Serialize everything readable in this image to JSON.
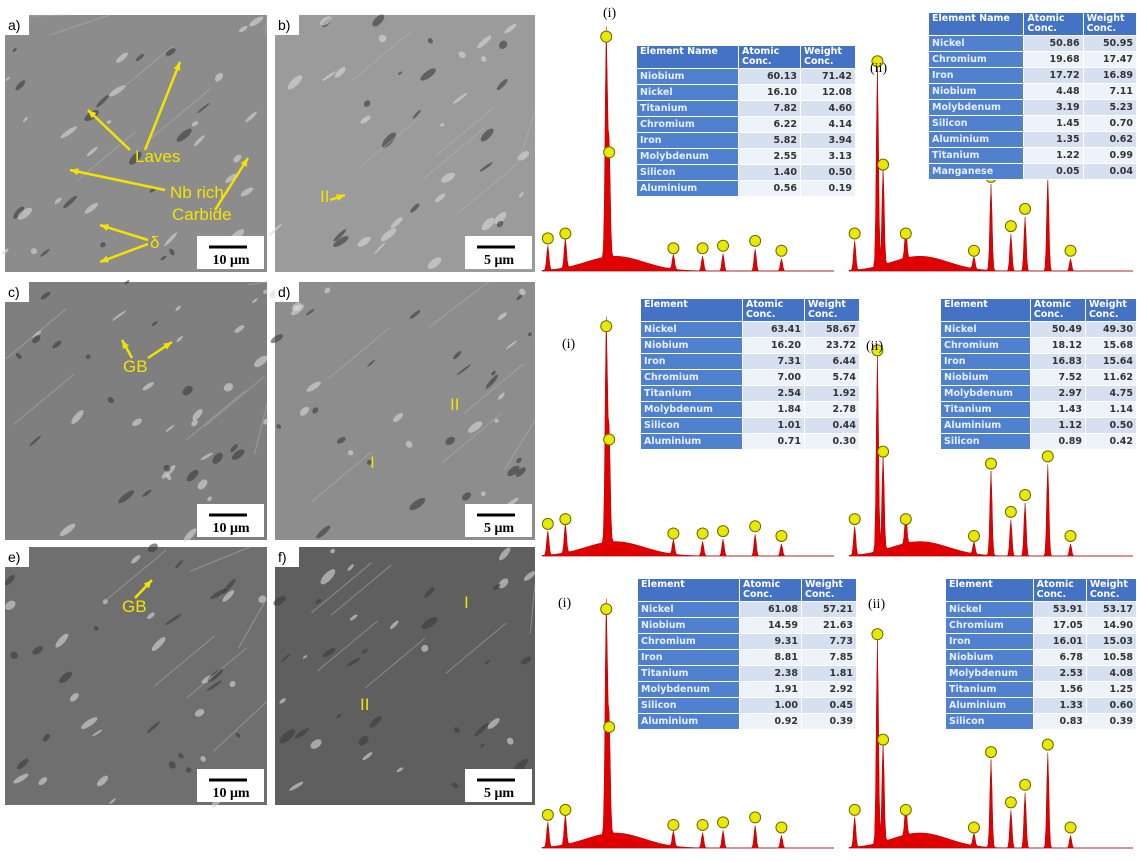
{
  "sem_panels": [
    {
      "label": "a)",
      "scale_bar": "10 μm",
      "annotations": [
        "Laves",
        "Nb rich",
        "Carbide",
        "δ"
      ]
    },
    {
      "label": "b)",
      "scale_bar": "5 μm",
      "annotations": [
        "II"
      ]
    },
    {
      "label": "c)",
      "scale_bar": "10 μm",
      "annotations": [
        "GB"
      ]
    },
    {
      "label": "d)",
      "scale_bar": "5 μm",
      "annotations": [
        "I",
        "II"
      ]
    },
    {
      "label": "e)",
      "scale_bar": "10 μm",
      "annotations": [
        "GB"
      ]
    },
    {
      "label": "f)",
      "scale_bar": "5 μm",
      "annotations": [
        "I",
        "II"
      ]
    }
  ],
  "eds_spectra": [
    {
      "label": "(i)",
      "table": {
        "header": [
          "Element Name",
          "Atomic Conc.",
          "Weight Conc."
        ],
        "rows": [
          [
            "Niobium",
            "60.13",
            "71.42"
          ],
          [
            "Nickel",
            "16.10",
            "12.08"
          ],
          [
            "Titanium",
            "7.82",
            "4.60"
          ],
          [
            "Chromium",
            "6.22",
            "4.14"
          ],
          [
            "Iron",
            "5.82",
            "3.94"
          ],
          [
            "Molybdenum",
            "2.55",
            "3.13"
          ],
          [
            "Silicon",
            "1.40",
            "0.50"
          ],
          [
            "Aluminium",
            "0.56",
            "0.19"
          ]
        ]
      }
    },
    {
      "label": "(ii)",
      "table": {
        "header": [
          "Element Name",
          "Atomic Conc.",
          "Weight Conc."
        ],
        "rows": [
          [
            "Nickel",
            "50.86",
            "50.95"
          ],
          [
            "Chromium",
            "19.68",
            "17.47"
          ],
          [
            "Iron",
            "17.72",
            "16.89"
          ],
          [
            "Niobium",
            "4.48",
            "7.11"
          ],
          [
            "Molybdenum",
            "3.19",
            "5.23"
          ],
          [
            "Silicon",
            "1.45",
            "0.70"
          ],
          [
            "Aluminium",
            "1.35",
            "0.62"
          ],
          [
            "Titanium",
            "1.22",
            "0.99"
          ],
          [
            "Manganese",
            "0.05",
            "0.04"
          ]
        ]
      }
    },
    {
      "label": "(i)",
      "table": {
        "header": [
          "Element",
          "Atomic Conc.",
          "Weight Conc."
        ],
        "rows": [
          [
            "Nickel",
            "63.41",
            "58.67"
          ],
          [
            "Niobium",
            "16.20",
            "23.72"
          ],
          [
            "Iron",
            "7.31",
            "6.44"
          ],
          [
            "Chromium",
            "7.00",
            "5.74"
          ],
          [
            "Titanium",
            "2.54",
            "1.92"
          ],
          [
            "Molybdenum",
            "1.84",
            "2.78"
          ],
          [
            "Silicon",
            "1.01",
            "0.44"
          ],
          [
            "Aluminium",
            "0.71",
            "0.30"
          ]
        ]
      }
    },
    {
      "label": "(ii)",
      "table": {
        "header": [
          "Element",
          "Atomic Conc.",
          "Weight Conc."
        ],
        "rows": [
          [
            "Nickel",
            "50.49",
            "49.30"
          ],
          [
            "Chromium",
            "18.12",
            "15.68"
          ],
          [
            "Iron",
            "16.83",
            "15.64"
          ],
          [
            "Niobium",
            "7.52",
            "11.62"
          ],
          [
            "Molybdenum",
            "2.97",
            "4.75"
          ],
          [
            "Titanium",
            "1.43",
            "1.14"
          ],
          [
            "Aluminium",
            "1.12",
            "0.50"
          ],
          [
            "Silicon",
            "0.89",
            "0.42"
          ]
        ]
      }
    },
    {
      "label": "(i)",
      "table": {
        "header": [
          "Element",
          "Atomic Conc.",
          "Weight Conc."
        ],
        "rows": [
          [
            "Nickel",
            "61.08",
            "57.21"
          ],
          [
            "Niobium",
            "14.59",
            "21.63"
          ],
          [
            "Chromium",
            "9.31",
            "7.73"
          ],
          [
            "Iron",
            "8.81",
            "7.85"
          ],
          [
            "Titanium",
            "2.38",
            "1.81"
          ],
          [
            "Molybdenum",
            "1.91",
            "2.92"
          ],
          [
            "Silicon",
            "1.00",
            "0.45"
          ],
          [
            "Aluminium",
            "0.92",
            "0.39"
          ]
        ]
      }
    },
    {
      "label": "(ii)",
      "table": {
        "header": [
          "Element",
          "Atomic Conc.",
          "Weight Conc."
        ],
        "rows": [
          [
            "Nickel",
            "53.91",
            "53.17"
          ],
          [
            "Chromium",
            "17.05",
            "14.90"
          ],
          [
            "Iron",
            "16.01",
            "15.03"
          ],
          [
            "Niobium",
            "6.78",
            "10.58"
          ],
          [
            "Molybdenum",
            "2.53",
            "4.08"
          ],
          [
            "Titanium",
            "1.56",
            "1.25"
          ],
          [
            "Aluminium",
            "1.33",
            "0.60"
          ],
          [
            "Silicon",
            "0.83",
            "0.39"
          ]
        ]
      }
    }
  ]
}
